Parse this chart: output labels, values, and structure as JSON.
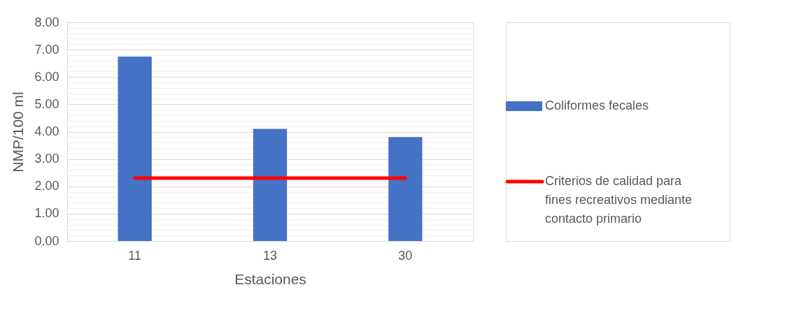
{
  "chart_data": {
    "type": "bar",
    "xlabel": "Estaciones",
    "ylabel": "NMP/100 ml",
    "categories": [
      "11",
      "13",
      "30"
    ],
    "series": [
      {
        "name": "Coliformes fecales",
        "color": "#4472c4",
        "values": [
          6.75,
          4.1,
          3.8
        ]
      },
      {
        "name": "Criterios de calidad para fines recreativos mediante contacto primario",
        "type": "line",
        "color": "#ff0000",
        "values": [
          2.3,
          2.3,
          2.3
        ]
      }
    ],
    "ylim": [
      0,
      8
    ],
    "yticks": [
      {
        "value": 0,
        "label": "0.00"
      },
      {
        "value": 0.2,
        "label": null
      },
      {
        "value": 0.4,
        "label": null
      },
      {
        "value": 0.6,
        "label": null
      },
      {
        "value": 0.8,
        "label": null
      },
      {
        "value": 1,
        "label": "1.00"
      },
      {
        "value": 1.2,
        "label": null
      },
      {
        "value": 1.4,
        "label": null
      },
      {
        "value": 1.6,
        "label": null
      },
      {
        "value": 1.8,
        "label": null
      },
      {
        "value": 2,
        "label": "2.00"
      },
      {
        "value": 2.2,
        "label": null
      },
      {
        "value": 2.4,
        "label": null
      },
      {
        "value": 2.6,
        "label": null
      },
      {
        "value": 2.8,
        "label": null
      },
      {
        "value": 3,
        "label": "3.00"
      },
      {
        "value": 3.2,
        "label": null
      },
      {
        "value": 3.4,
        "label": null
      },
      {
        "value": 3.6,
        "label": null
      },
      {
        "value": 3.8,
        "label": null
      },
      {
        "value": 4,
        "label": "4.00"
      },
      {
        "value": 4.2,
        "label": null
      },
      {
        "value": 4.4,
        "label": null
      },
      {
        "value": 4.6,
        "label": null
      },
      {
        "value": 4.8,
        "label": null
      },
      {
        "value": 5,
        "label": "5.00"
      },
      {
        "value": 5.2,
        "label": null
      },
      {
        "value": 5.4,
        "label": null
      },
      {
        "value": 5.6,
        "label": null
      },
      {
        "value": 5.8,
        "label": null
      },
      {
        "value": 6,
        "label": "6.00"
      },
      {
        "value": 6.2,
        "label": null
      },
      {
        "value": 6.4,
        "label": null
      },
      {
        "value": 6.6,
        "label": null
      },
      {
        "value": 6.8,
        "label": null
      },
      {
        "value": 7,
        "label": "7.00"
      },
      {
        "value": 7.2,
        "label": null
      },
      {
        "value": 7.4,
        "label": null
      },
      {
        "value": 7.6,
        "label": null
      },
      {
        "value": 7.8,
        "label": null
      },
      {
        "value": 8,
        "label": "8.00"
      }
    ],
    "grid": "y",
    "legend": "right"
  }
}
